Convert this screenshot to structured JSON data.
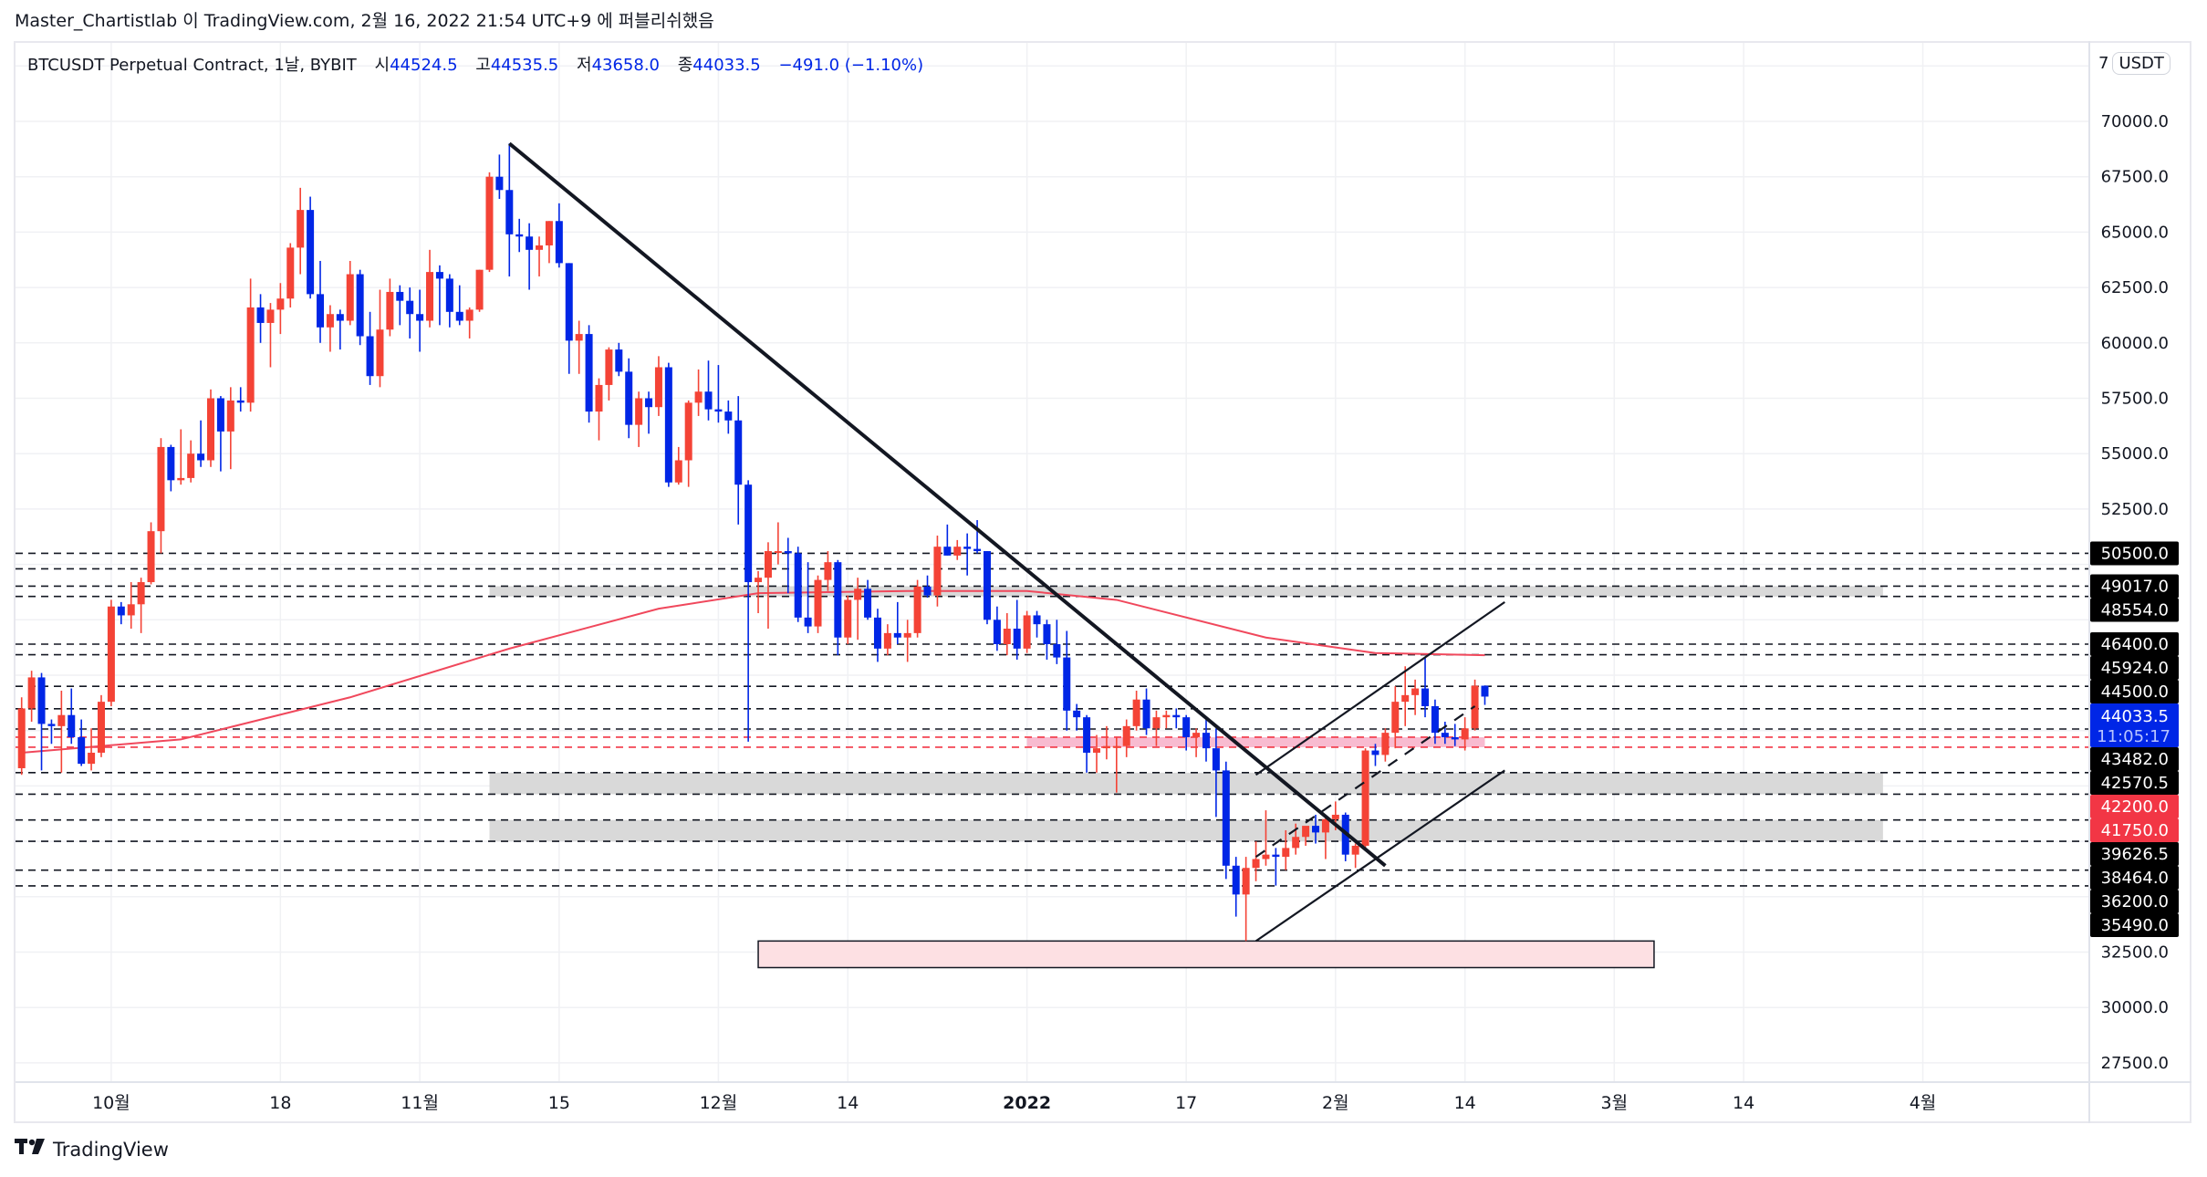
{
  "publication": {
    "text": "Master_Chartistlab 이 TradingView.com, 2월 16, 2022 21:54 UTC+9 에 퍼블리쉬했음"
  },
  "legend": {
    "symbol": "BTCUSDT Perpetual Contract, 1날, BYBIT",
    "open_label": "시",
    "open": "44524.5",
    "high_label": "고",
    "high": "44535.5",
    "low_label": "저",
    "low": "43658.0",
    "close_label": "종",
    "close": "44033.5",
    "change": "−491.0 (−1.10%)"
  },
  "currency": {
    "prefix": "7",
    "unit": "USDT"
  },
  "footer": {
    "brand": "TradingView",
    "logo_icon": "tradingview-logo-icon"
  },
  "colors": {
    "up": "#f44336",
    "down": "#0026e6",
    "ma": "#f0485c",
    "zone_gray": "#d9d9d9",
    "zone_pink": "#f8bbd0",
    "box_pink": "#fde0e3",
    "last_price_bg": "#0026e6",
    "red_label_bg": "#f23645"
  },
  "chart_data": {
    "type": "candlestick",
    "ylim": [
      26500,
      71500
    ],
    "grid": true,
    "y_ticks": [
      "70000.0",
      "67500.0",
      "65000.0",
      "62500.0",
      "60000.0",
      "57500.0",
      "55000.0",
      "52500.0",
      "32500.0",
      "30000.0",
      "27500.0"
    ],
    "x_ticks": [
      {
        "label": "10월",
        "date": "2021-10-01"
      },
      {
        "label": "18",
        "date": "2021-10-18"
      },
      {
        "label": "11월",
        "date": "2021-11-01"
      },
      {
        "label": "15",
        "date": "2021-11-15"
      },
      {
        "label": "12월",
        "date": "2021-12-01"
      },
      {
        "label": "14",
        "date": "2021-12-14"
      },
      {
        "label": "2022",
        "date": "2022-01-01"
      },
      {
        "label": "17",
        "date": "2022-01-17"
      },
      {
        "label": "2월",
        "date": "2022-02-01"
      },
      {
        "label": "14",
        "date": "2022-02-14"
      },
      {
        "label": "3월",
        "date": "2022-03-01"
      },
      {
        "label": "14",
        "date": "2022-03-14"
      },
      {
        "label": "4월",
        "date": "2022-04-01"
      }
    ],
    "candles_start": "2021-09-22",
    "candles_ohlc": [
      [
        40800,
        44000,
        40500,
        43500
      ],
      [
        43500,
        45200,
        42900,
        44900
      ],
      [
        44900,
        45100,
        40700,
        42800
      ],
      [
        42800,
        43000,
        41900,
        42700
      ],
      [
        42700,
        44300,
        40600,
        43200
      ],
      [
        43200,
        44400,
        41900,
        42200
      ],
      [
        42200,
        43000,
        40900,
        41000
      ],
      [
        41000,
        42600,
        40700,
        41500
      ],
      [
        41500,
        44100,
        41300,
        43800
      ],
      [
        43800,
        48400,
        43600,
        48100
      ],
      [
        48100,
        48300,
        47300,
        47700
      ],
      [
        47700,
        49200,
        47100,
        48200
      ],
      [
        48200,
        49400,
        46900,
        49200
      ],
      [
        49200,
        51900,
        49100,
        51500
      ],
      [
        51500,
        55700,
        50500,
        55300
      ],
      [
        55300,
        55400,
        53300,
        53800
      ],
      [
        53800,
        56100,
        53600,
        53900
      ],
      [
        53900,
        55600,
        53700,
        55000
      ],
      [
        55000,
        56500,
        54400,
        54700
      ],
      [
        54700,
        57900,
        54400,
        57500
      ],
      [
        57500,
        57600,
        54200,
        56000
      ],
      [
        56000,
        58000,
        54300,
        57400
      ],
      [
        57400,
        58000,
        56900,
        57300
      ],
      [
        57300,
        62900,
        56900,
        61600
      ],
      [
        61600,
        62200,
        60000,
        60900
      ],
      [
        60900,
        61800,
        58900,
        61500
      ],
      [
        61500,
        62700,
        60400,
        62000
      ],
      [
        62000,
        64500,
        61600,
        64300
      ],
      [
        64300,
        67000,
        63100,
        66000
      ],
      [
        66000,
        66600,
        62000,
        62200
      ],
      [
        62200,
        63700,
        60000,
        60700
      ],
      [
        60700,
        61700,
        59600,
        61300
      ],
      [
        61300,
        61500,
        59700,
        61000
      ],
      [
        61000,
        63700,
        60800,
        63100
      ],
      [
        63100,
        63300,
        59900,
        60300
      ],
      [
        60300,
        61400,
        58100,
        58500
      ],
      [
        58500,
        62400,
        58000,
        60600
      ],
      [
        60600,
        62900,
        60300,
        62300
      ],
      [
        62300,
        62600,
        60800,
        61900
      ],
      [
        61900,
        62500,
        60200,
        61300
      ],
      [
        61300,
        62400,
        59600,
        61000
      ],
      [
        61000,
        64200,
        60700,
        63200
      ],
      [
        63200,
        63500,
        60800,
        62900
      ],
      [
        62900,
        63100,
        60700,
        61400
      ],
      [
        61400,
        62600,
        60800,
        61000
      ],
      [
        61000,
        61600,
        60200,
        61500
      ],
      [
        61500,
        63300,
        61400,
        63300
      ],
      [
        63300,
        67700,
        63200,
        67500
      ],
      [
        67500,
        68500,
        66500,
        66900
      ],
      [
        66900,
        69000,
        63000,
        64900
      ],
      [
        64900,
        65600,
        64100,
        64800
      ],
      [
        64800,
        65400,
        62400,
        64200
      ],
      [
        64200,
        64800,
        63000,
        64400
      ],
      [
        64400,
        65500,
        63600,
        65500
      ],
      [
        65500,
        66300,
        63400,
        63600
      ],
      [
        63600,
        63600,
        58600,
        60100
      ],
      [
        60100,
        61000,
        58600,
        60400
      ],
      [
        60400,
        60800,
        56400,
        56900
      ],
      [
        56900,
        58400,
        55600,
        58100
      ],
      [
        58100,
        59800,
        57400,
        59700
      ],
      [
        59700,
        60000,
        58500,
        58700
      ],
      [
        58700,
        59300,
        55700,
        56300
      ],
      [
        56300,
        57800,
        55300,
        57500
      ],
      [
        57500,
        57800,
        55900,
        57100
      ],
      [
        57100,
        59400,
        56700,
        58900
      ],
      [
        58900,
        59100,
        53500,
        53700
      ],
      [
        53700,
        55300,
        53600,
        54700
      ],
      [
        54700,
        57400,
        53500,
        57300
      ],
      [
        57300,
        58800,
        56700,
        57800
      ],
      [
        57800,
        59200,
        56500,
        57000
      ],
      [
        57000,
        59000,
        56400,
        56900
      ],
      [
        56900,
        57400,
        55900,
        56500
      ],
      [
        56500,
        57600,
        51800,
        53600
      ],
      [
        53600,
        53800,
        42000,
        49200
      ],
      [
        49200,
        49700,
        47800,
        49400
      ],
      [
        49400,
        51000,
        47100,
        50600
      ],
      [
        50600,
        51900,
        50000,
        50600
      ],
      [
        50600,
        51200,
        48700,
        50500
      ],
      [
        50500,
        50800,
        47400,
        47600
      ],
      [
        47600,
        50100,
        46900,
        47200
      ],
      [
        47200,
        49500,
        46900,
        49300
      ],
      [
        49300,
        50600,
        48800,
        50100
      ],
      [
        50100,
        50200,
        45900,
        46700
      ],
      [
        46700,
        48600,
        46400,
        48400
      ],
      [
        48400,
        49400,
        46600,
        48900
      ],
      [
        48900,
        49300,
        47500,
        47600
      ],
      [
        47600,
        48000,
        45600,
        46200
      ],
      [
        46200,
        47300,
        45900,
        46900
      ],
      [
        46900,
        48300,
        46400,
        46700
      ],
      [
        46700,
        47500,
        45600,
        46900
      ],
      [
        46900,
        49300,
        46700,
        49000
      ],
      [
        49000,
        49500,
        48500,
        48600
      ],
      [
        48600,
        51300,
        48100,
        50800
      ],
      [
        50800,
        51800,
        50400,
        50400
      ],
      [
        50400,
        51100,
        50200,
        50800
      ],
      [
        50800,
        51400,
        49500,
        50700
      ],
      [
        50700,
        52000,
        50500,
        50600
      ],
      [
        50600,
        50600,
        47300,
        47500
      ],
      [
        47500,
        48100,
        46100,
        46400
      ],
      [
        46400,
        47800,
        45900,
        47100
      ],
      [
        47100,
        48400,
        45700,
        46200
      ],
      [
        46200,
        47900,
        46000,
        47700
      ],
      [
        47700,
        47900,
        46700,
        47300
      ],
      [
        47300,
        47500,
        45700,
        46400
      ],
      [
        46400,
        47500,
        45500,
        45800
      ],
      [
        45800,
        47000,
        42500,
        43400
      ],
      [
        43400,
        43700,
        42500,
        43100
      ],
      [
        43100,
        43200,
        40600,
        41500
      ],
      [
        41500,
        42300,
        40600,
        41700
      ],
      [
        41700,
        42700,
        41200,
        41800
      ],
      [
        41800,
        42200,
        39700,
        41800
      ],
      [
        41800,
        43000,
        41300,
        42700
      ],
      [
        42700,
        44300,
        42500,
        43900
      ],
      [
        43900,
        44400,
        42300,
        42600
      ],
      [
        42600,
        43400,
        41800,
        43100
      ],
      [
        43100,
        43400,
        42600,
        43200
      ],
      [
        43200,
        43500,
        42600,
        43100
      ],
      [
        43100,
        43200,
        41600,
        42200
      ],
      [
        42200,
        42600,
        41300,
        42400
      ],
      [
        42400,
        43000,
        41100,
        41700
      ],
      [
        41700,
        42600,
        38600,
        40700
      ],
      [
        40700,
        41100,
        35800,
        36400
      ],
      [
        36400,
        36800,
        34100,
        35100
      ],
      [
        35100,
        36800,
        33000,
        36300
      ],
      [
        36300,
        37500,
        35700,
        36700
      ],
      [
        36700,
        38900,
        36400,
        36900
      ],
      [
        36900,
        37200,
        35500,
        36800
      ],
      [
        36800,
        38000,
        36200,
        37200
      ],
      [
        37200,
        38300,
        36900,
        37700
      ],
      [
        37700,
        38000,
        37300,
        38200
      ],
      [
        38200,
        38700,
        37400,
        37900
      ],
      [
        37900,
        38700,
        36700,
        38500
      ],
      [
        38500,
        39300,
        38000,
        38700
      ],
      [
        38700,
        38800,
        36600,
        36900
      ],
      [
        36900,
        37400,
        36300,
        37300
      ],
      [
        37300,
        41700,
        37100,
        41600
      ],
      [
        41600,
        41900,
        40900,
        41400
      ],
      [
        41400,
        42600,
        41100,
        42400
      ],
      [
        42400,
        44500,
        41700,
        43800
      ],
      [
        43800,
        45400,
        42700,
        44100
      ],
      [
        44100,
        44800,
        43200,
        44400
      ],
      [
        44400,
        45800,
        43100,
        43600
      ],
      [
        43600,
        43900,
        41900,
        42400
      ],
      [
        42400,
        42900,
        41900,
        42200
      ],
      [
        42200,
        42800,
        41800,
        42100
      ],
      [
        42100,
        43100,
        41600,
        42600
      ],
      [
        42600,
        44800,
        42500,
        44524.5
      ],
      [
        44524.5,
        44535.5,
        43658,
        44033.5
      ]
    ],
    "moving_average": [
      [
        "2021-09-22",
        41500
      ],
      [
        "2021-10-08",
        42100
      ],
      [
        "2021-10-25",
        44000
      ],
      [
        "2021-11-10",
        46200
      ],
      [
        "2021-11-25",
        48000
      ],
      [
        "2021-12-05",
        48700
      ],
      [
        "2021-12-20",
        48800
      ],
      [
        "2022-01-01",
        48800
      ],
      [
        "2022-01-10",
        48400
      ],
      [
        "2022-01-25",
        46700
      ],
      [
        "2022-02-05",
        46000
      ],
      [
        "2022-02-16",
        45900
      ]
    ],
    "horizontal_levels": [
      {
        "price": 50500,
        "label": "50500.0",
        "style": "dashed"
      },
      {
        "price": 49800,
        "style": "dashed"
      },
      {
        "price": 49017,
        "label": "49017.0",
        "style": "dashed"
      },
      {
        "price": 48554,
        "label": "48554.0",
        "style": "dashed"
      },
      {
        "price": 46400,
        "label": "46400.0",
        "style": "dashed"
      },
      {
        "price": 45924,
        "label": "45924.0",
        "style": "dashed"
      },
      {
        "price": 44500,
        "label": "44500.0",
        "style": "dashed"
      },
      {
        "price": 43482,
        "label": "43482.0",
        "style": "dashed"
      },
      {
        "price": 42570.5,
        "label": "42570.5",
        "style": "dashed"
      },
      {
        "price": 42200,
        "label": "42200.0",
        "style": "red-dashed"
      },
      {
        "price": 41750,
        "label": "41750.0",
        "style": "red-dashed"
      },
      {
        "price": 40600,
        "style": "dashed"
      },
      {
        "price": 39626.5,
        "label": "39626.5",
        "style": "dashed"
      },
      {
        "price": 38464,
        "label": "38464.0",
        "style": "dashed"
      },
      {
        "price": 37500,
        "style": "dashed"
      },
      {
        "price": 36200,
        "label": "36200.0",
        "style": "dashed"
      },
      {
        "price": 35490,
        "label": "35490.0",
        "style": "dashed"
      }
    ],
    "last_price": {
      "price": "44033.5",
      "countdown": "11:05:17"
    },
    "zones": [
      {
        "from": "2021-11-08",
        "to": "2022-03-28",
        "low": 48554,
        "high": 49017,
        "kind": "gray"
      },
      {
        "from": "2021-11-08",
        "to": "2022-03-28",
        "low": 39626.5,
        "high": 40600,
        "kind": "gray"
      },
      {
        "from": "2021-11-08",
        "to": "2022-03-28",
        "low": 37500,
        "high": 38464,
        "kind": "gray"
      },
      {
        "from": "2022-01-01",
        "to": "2022-02-16",
        "low": 41750,
        "high": 42200,
        "kind": "pink"
      },
      {
        "from": "2021-12-05",
        "to": "2022-03-05",
        "low": 31800,
        "high": 33000,
        "kind": "pink-box"
      }
    ],
    "trendlines": [
      {
        "from": [
          "2021-11-10",
          69000
        ],
        "to": [
          "2022-02-06",
          36400
        ],
        "style": "thick"
      },
      {
        "from": [
          "2022-01-24",
          40500
        ],
        "to": [
          "2022-02-18",
          48300
        ],
        "style": "solid"
      },
      {
        "from": [
          "2022-01-24",
          33000
        ],
        "to": [
          "2022-02-18",
          40700
        ],
        "style": "solid"
      },
      {
        "from": [
          "2022-01-24",
          36800
        ],
        "to": [
          "2022-02-15",
          43600
        ],
        "style": "dashed"
      }
    ]
  }
}
